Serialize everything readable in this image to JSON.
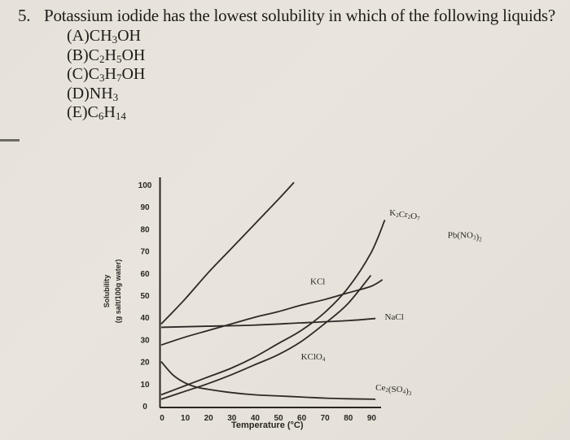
{
  "question": {
    "number": "5.",
    "text": "Potassium iodide has the lowest solubility in which of the following liquids?",
    "choices": [
      {
        "letter": "(A)",
        "formula": [
          [
            "CH",
            ""
          ],
          [
            "3",
            "sub"
          ],
          [
            "OH",
            ""
          ]
        ],
        "plain": "CH3OH"
      },
      {
        "letter": "(B)",
        "formula": [
          [
            "C",
            ""
          ],
          [
            "2",
            "sub"
          ],
          [
            "H",
            ""
          ],
          [
            "5",
            "sub"
          ],
          [
            "OH",
            ""
          ]
        ],
        "plain": "C2H5OH"
      },
      {
        "letter": "(C)",
        "formula": [
          [
            "C",
            ""
          ],
          [
            "3",
            "sub"
          ],
          [
            "H",
            ""
          ],
          [
            "7",
            "sub"
          ],
          [
            "OH",
            ""
          ]
        ],
        "plain": "C3H7OH"
      },
      {
        "letter": "(D)",
        "formula": [
          [
            "NH",
            ""
          ],
          [
            "3",
            "sub"
          ]
        ],
        "plain": "NH3"
      },
      {
        "letter": "(E)",
        "formula": [
          [
            "C",
            ""
          ],
          [
            "6",
            "sub"
          ],
          [
            "H",
            ""
          ],
          [
            "14",
            "sub"
          ]
        ],
        "plain": "C6H14"
      }
    ]
  },
  "chart_data": {
    "type": "line",
    "title": "",
    "xlabel": "Temperature (°C)",
    "ylabel": "Solubility (g salt/100g water)",
    "ylabel_lines": [
      "Solubility",
      "(g salt/100g water)"
    ],
    "xlim": [
      0,
      95
    ],
    "ylim": [
      0,
      100
    ],
    "x_ticks": [
      0,
      10,
      20,
      30,
      40,
      50,
      60,
      70,
      80,
      90
    ],
    "y_ticks": [
      0,
      10,
      20,
      30,
      40,
      50,
      60,
      70,
      80,
      90,
      100
    ],
    "grid": false,
    "legend": "inline labels at line ends",
    "series": [
      {
        "name": "Pb(NO3)2",
        "label_parts": [
          [
            "Pb(NO",
            ""
          ],
          [
            "3",
            "sub"
          ],
          [
            ")",
            ""
          ],
          [
            "2",
            "sub"
          ]
        ],
        "x": [
          0,
          10,
          20,
          30,
          40,
          50,
          57
        ],
        "y": [
          37,
          48,
          60,
          71,
          82,
          93,
          101
        ],
        "label_pos": [
          123,
          76
        ]
      },
      {
        "name": "K2Cr2O7",
        "label_parts": [
          [
            "K",
            ""
          ],
          [
            "2",
            "sub"
          ],
          [
            "Cr",
            ""
          ],
          [
            "2",
            "sub"
          ],
          [
            "O",
            ""
          ],
          [
            "7",
            "sub"
          ]
        ],
        "x": [
          0,
          10,
          20,
          30,
          40,
          50,
          60,
          70,
          80,
          90,
          96
        ],
        "y": [
          5,
          9,
          13,
          17,
          22,
          28,
          34,
          42,
          53,
          69,
          84
        ],
        "label_pos": [
          98,
          86
        ]
      },
      {
        "name": "KCl",
        "label_parts": [
          [
            "KCl",
            ""
          ]
        ],
        "x": [
          0,
          10,
          20,
          30,
          40,
          50,
          60,
          70,
          80,
          90,
          95
        ],
        "y": [
          27.5,
          31,
          34,
          37,
          40,
          42.5,
          45.5,
          48,
          51,
          54,
          57
        ],
        "label_pos": [
          64,
          55
        ]
      },
      {
        "name": "NaCl",
        "label_parts": [
          [
            "NaCl",
            ""
          ]
        ],
        "x": [
          0,
          20,
          40,
          60,
          80,
          92
        ],
        "y": [
          35.5,
          36,
          36.5,
          37.5,
          38.5,
          39.5
        ],
        "label_pos": [
          96,
          39
        ]
      },
      {
        "name": "KClO4",
        "label_parts": [
          [
            "KClO",
            ""
          ],
          [
            "4",
            "sub"
          ]
        ],
        "x": [
          0,
          10,
          20,
          30,
          40,
          50,
          60,
          70,
          80,
          90
        ],
        "y": [
          3,
          6.5,
          10,
          14,
          18.5,
          23,
          29,
          37,
          46,
          59
        ],
        "label_pos": [
          60,
          21
        ]
      },
      {
        "name": "Ce2(SO4)3",
        "label_parts": [
          [
            "Ce",
            ""
          ],
          [
            "2",
            "sub"
          ],
          [
            "(SO",
            ""
          ],
          [
            "4",
            "sub"
          ],
          [
            ")",
            ""
          ],
          [
            "3",
            "sub"
          ]
        ],
        "x": [
          0,
          5,
          10,
          15,
          20,
          30,
          40,
          50,
          60,
          70,
          80,
          92
        ],
        "y": [
          20,
          14,
          10.5,
          8.5,
          7.5,
          6,
          5,
          4.5,
          4,
          3.5,
          3.2,
          3
        ],
        "label_pos": [
          92,
          7
        ]
      }
    ]
  },
  "margin_mark": "—"
}
